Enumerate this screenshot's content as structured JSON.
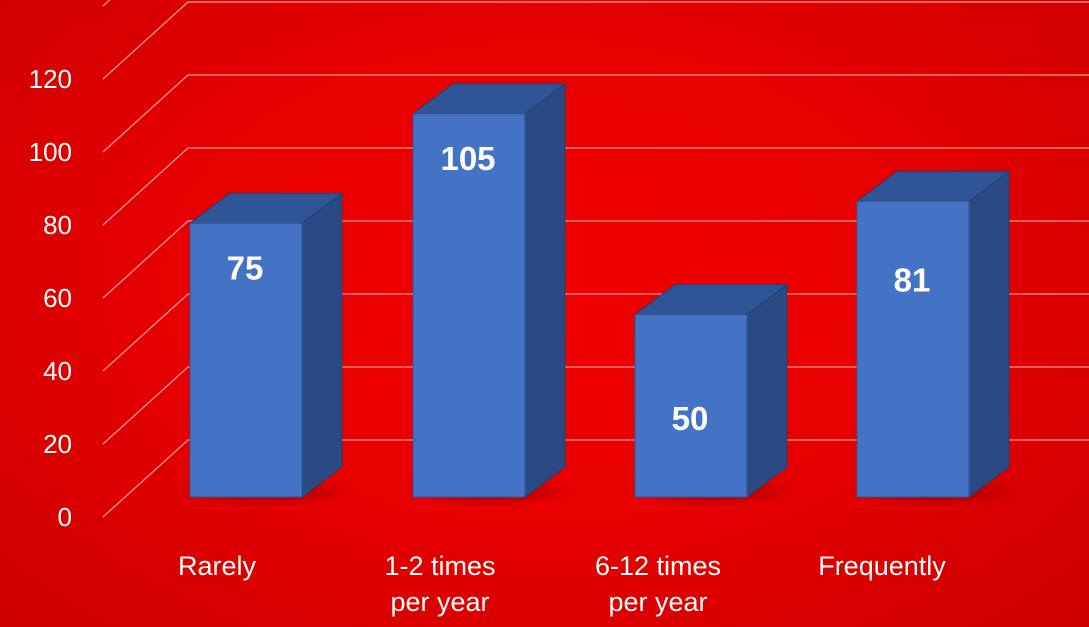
{
  "chart_data": {
    "type": "bar",
    "style": "3d-column",
    "categories": [
      [
        "Rarely"
      ],
      [
        "1-2 times",
        "per year"
      ],
      [
        "6-12 times",
        "per year"
      ],
      [
        "Frequently"
      ]
    ],
    "values": [
      75,
      105,
      50,
      81
    ],
    "data_labels": [
      "75",
      "105",
      "50",
      "81"
    ],
    "yticks": [
      "0",
      "20",
      "40",
      "60",
      "80",
      "100",
      "120"
    ],
    "ylim": [
      0,
      140
    ],
    "grid": true,
    "legend": "none",
    "colors": {
      "background": "#e60000",
      "bar_front": "#4472c4",
      "bar_top": "#2f5597",
      "bar_side": "#2b4a83",
      "text": "#ffffff",
      "grid": "#ffc8c8"
    }
  }
}
